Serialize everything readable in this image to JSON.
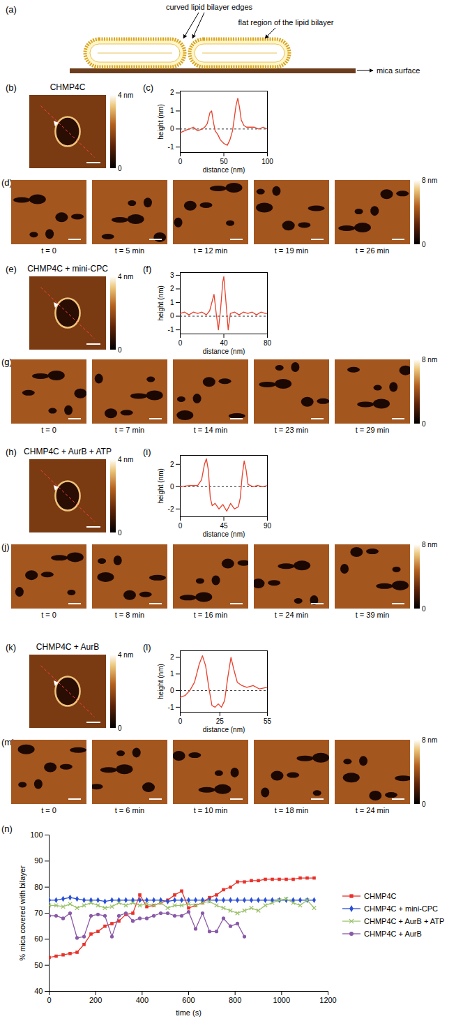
{
  "schematic": {
    "panel": "(a)",
    "edges_label": "curved lipid bilayer edges",
    "flat_label": "flat region of the lipid bilayer",
    "surface_label": "mica surface"
  },
  "images": [
    {
      "panel": "(b)",
      "title": "CHMP4C",
      "colorbar": {
        "range": [
          0,
          4
        ],
        "ticks": [
          0,
          {
            "value": 4,
            "label": "4 nm"
          }
        ]
      }
    },
    {
      "panel": "(d)",
      "frames": [
        "t = 0",
        "t = 5 min",
        "t = 12 min",
        "t = 19 min",
        "t = 26 min"
      ],
      "colorbar": {
        "range": [
          0,
          8
        ],
        "ticks": [
          0,
          {
            "value": 8,
            "label": "8 nm"
          }
        ]
      }
    },
    {
      "panel": "(e)",
      "title": "CHMP4C + mini-CPC",
      "colorbar": {
        "range": [
          0,
          4
        ],
        "ticks": [
          0,
          {
            "value": 4,
            "label": "4 nm"
          }
        ]
      }
    },
    {
      "panel": "(g)",
      "frames": [
        "t = 0",
        "t = 7 min",
        "t = 14 min",
        "t = 23 min",
        "t = 29 min"
      ],
      "colorbar": {
        "range": [
          0,
          8
        ],
        "ticks": [
          0,
          {
            "value": 8,
            "label": "8 nm"
          }
        ]
      }
    },
    {
      "panel": "(h)",
      "title": "CHMP4C + AurB + ATP",
      "colorbar": {
        "range": [
          0,
          4
        ],
        "ticks": [
          0,
          {
            "value": 4,
            "label": "4 nm"
          }
        ]
      }
    },
    {
      "panel": "(j)",
      "frames": [
        "t = 0",
        "t = 8 min",
        "t = 16 min",
        "t = 24 min",
        "t = 39 min"
      ],
      "colorbar": {
        "range": [
          0,
          8
        ],
        "ticks": [
          0,
          {
            "value": 8,
            "label": "8 nm"
          }
        ]
      }
    },
    {
      "panel": "(k)",
      "title": "CHMP4C + AurB",
      "colorbar": {
        "range": [
          0,
          4
        ],
        "ticks": [
          0,
          {
            "value": 4,
            "label": "4 nm"
          }
        ]
      }
    },
    {
      "panel": "(m)",
      "frames": [
        "t = 0",
        "t = 6 min",
        "t = 10 min",
        "t = 18 min",
        "t = 24 min"
      ],
      "colorbar": {
        "range": [
          0,
          8
        ],
        "ticks": [
          0,
          {
            "value": 8,
            "label": "8 nm"
          }
        ]
      }
    }
  ],
  "chart_data": [
    {
      "panel": "(c)",
      "type": "line",
      "color": "#e8412c",
      "ref_line": 0,
      "x": [
        0,
        5,
        10,
        15,
        20,
        25,
        28,
        31,
        34,
        36,
        38,
        40,
        43,
        46,
        50,
        54,
        57,
        60,
        62,
        64,
        66,
        68,
        70,
        73,
        76,
        80,
        85,
        90,
        95,
        100
      ],
      "values": [
        -0.2,
        -0.1,
        0,
        0.1,
        -0.1,
        0,
        0.1,
        0.3,
        0.9,
        1.0,
        0.4,
        -0.1,
        -0.3,
        -0.6,
        -0.8,
        -0.9,
        -0.6,
        -0.1,
        0.6,
        1.3,
        1.7,
        1.2,
        0.5,
        0.2,
        0.1,
        0.1,
        0.1,
        0,
        0.1,
        0
      ],
      "xlim": [
        0,
        100
      ],
      "xticks": [
        0,
        50,
        100
      ],
      "ylim": [
        -1.3,
        2.1
      ],
      "yticks": [
        -1,
        0,
        1,
        2
      ],
      "xlabel": "distance (nm)",
      "ylabel": "height (nm)"
    },
    {
      "panel": "(f)",
      "type": "line",
      "color": "#e8412c",
      "ref_line": 0,
      "x": [
        0,
        4,
        8,
        12,
        16,
        20,
        24,
        27,
        29,
        31,
        33,
        35,
        37,
        39,
        40,
        42,
        44,
        46,
        50,
        54,
        58,
        62,
        66,
        70,
        74,
        78,
        80
      ],
      "values": [
        0.2,
        0.3,
        0.1,
        0.3,
        0.2,
        0.3,
        0.1,
        0.4,
        1.0,
        1.6,
        0.2,
        -1.0,
        0.5,
        2.5,
        2.9,
        1.0,
        -1.0,
        0.2,
        0.3,
        0.1,
        0.3,
        0.2,
        0.3,
        0.1,
        0.3,
        0.2,
        0.2
      ],
      "xlim": [
        0,
        80
      ],
      "xticks": [
        0,
        40,
        80
      ],
      "ylim": [
        -1.3,
        3.2
      ],
      "yticks": [
        -1,
        0,
        1,
        2,
        3
      ],
      "xlabel": "distance (nm)",
      "ylabel": "height (nm)"
    },
    {
      "panel": "(i)",
      "type": "line",
      "color": "#e8412c",
      "ref_line": 0,
      "x": [
        0,
        10,
        18,
        22,
        25,
        27,
        29,
        31,
        33,
        36,
        40,
        44,
        48,
        52,
        56,
        60,
        62,
        64,
        66,
        68,
        70,
        75,
        80,
        85,
        90
      ],
      "values": [
        0,
        0.1,
        0.1,
        0.6,
        2.0,
        2.5,
        1.5,
        -1.0,
        -1.7,
        -1.5,
        -2.0,
        -1.6,
        -2.2,
        -1.5,
        -2.0,
        -1.8,
        -1.0,
        1.0,
        2.3,
        1.5,
        0.2,
        0,
        0.1,
        0,
        0.1
      ],
      "xlim": [
        0,
        90
      ],
      "xticks": [
        0,
        45,
        90
      ],
      "ylim": [
        -2.7,
        2.8
      ],
      "yticks": [
        -2,
        0,
        2
      ],
      "xlabel": "distance (nm)",
      "ylabel": "height (nm)"
    },
    {
      "panel": "(l)",
      "type": "line",
      "color": "#e8412c",
      "ref_line": 0,
      "x": [
        0,
        3,
        6,
        9,
        12,
        14,
        16,
        18,
        20,
        22,
        24,
        26,
        28,
        30,
        32,
        34,
        36,
        39,
        42,
        46,
        50,
        55
      ],
      "values": [
        -0.4,
        -0.3,
        0,
        0.5,
        1.6,
        2.1,
        1.5,
        0.2,
        -0.9,
        -1.0,
        -0.8,
        -1.0,
        -0.6,
        0.8,
        2.0,
        1.2,
        0.5,
        0.3,
        0.2,
        0.3,
        0.1,
        0.2
      ],
      "xlim": [
        0,
        55
      ],
      "xticks": [
        0,
        25,
        55
      ],
      "ylim": [
        -1.3,
        2.4
      ],
      "yticks": [
        -1,
        0,
        1,
        2
      ],
      "xlabel": "distance (nm)",
      "ylabel": "height (nm)"
    },
    {
      "panel": "(n)",
      "type": "line",
      "legend": "right",
      "xlabel": "time (s)",
      "ylabel": "% mica covered with bilayer",
      "xlim": [
        0,
        1200
      ],
      "xticks": [
        0,
        200,
        400,
        600,
        800,
        1000,
        1200
      ],
      "ylim": [
        40,
        100
      ],
      "yticks": [
        40,
        50,
        60,
        70,
        80,
        90,
        100
      ],
      "series": [
        {
          "name": "CHMP4C",
          "color": "#e8312a",
          "marker": "square",
          "x": [
            0,
            30,
            60,
            90,
            120,
            150,
            180,
            210,
            240,
            270,
            300,
            330,
            360,
            390,
            420,
            450,
            480,
            510,
            540,
            570,
            600,
            630,
            660,
            690,
            720,
            750,
            780,
            810,
            840,
            870,
            900,
            930,
            960,
            990,
            1020,
            1050,
            1080,
            1110,
            1140
          ],
          "values": [
            53,
            53.5,
            54,
            54.5,
            55,
            58,
            62,
            63,
            65,
            66,
            67,
            69.5,
            70,
            77,
            72.5,
            73,
            74,
            75,
            77,
            78.5,
            72,
            73,
            74,
            76,
            77,
            79,
            80,
            82,
            82,
            82.5,
            82.5,
            83,
            83,
            83,
            83,
            83,
            83.5,
            83.5,
            83.5
          ]
        },
        {
          "name": "CHMP4C + mini-CPC",
          "color": "#2a4fd6",
          "marker": "diamond",
          "x": [
            0,
            30,
            60,
            90,
            120,
            150,
            180,
            210,
            240,
            270,
            300,
            330,
            360,
            390,
            420,
            450,
            480,
            510,
            540,
            570,
            600,
            630,
            660,
            690,
            720,
            750,
            780,
            810,
            840,
            870,
            900,
            930,
            960,
            990,
            1020,
            1050,
            1080,
            1110,
            1140
          ],
          "values": [
            75,
            75,
            75.5,
            76,
            75.5,
            75,
            75,
            75,
            74.5,
            75,
            75,
            75,
            75,
            75,
            75,
            75,
            75,
            74.5,
            75,
            75,
            75,
            75,
            75,
            75,
            75,
            75,
            75,
            75,
            75,
            75,
            75,
            75,
            75,
            75,
            75,
            75,
            75,
            75,
            75
          ]
        },
        {
          "name": "CHMP4C + AurB + ATP",
          "color": "#9bc26b",
          "marker": "times",
          "x": [
            0,
            30,
            60,
            90,
            120,
            150,
            180,
            210,
            240,
            270,
            300,
            330,
            360,
            390,
            420,
            450,
            480,
            510,
            540,
            570,
            600,
            630,
            660,
            690,
            720,
            750,
            780,
            810,
            840,
            870,
            900,
            930,
            960,
            990,
            1020,
            1050,
            1080,
            1110,
            1140
          ],
          "values": [
            73,
            73,
            72.5,
            73.5,
            72,
            73,
            74,
            73,
            72,
            72.5,
            74,
            73,
            74,
            73,
            73.5,
            73,
            74,
            72,
            73,
            73,
            73.5,
            73,
            74,
            74.5,
            73,
            72,
            71,
            70,
            71,
            72,
            71,
            73,
            74,
            75,
            75.5,
            74,
            73,
            75,
            72
          ]
        },
        {
          "name": "CHMP4C + AurB",
          "color": "#8a5aa8",
          "marker": "circle",
          "x": [
            0,
            30,
            60,
            90,
            120,
            150,
            180,
            210,
            240,
            270,
            300,
            330,
            360,
            390,
            420,
            450,
            480,
            510,
            540,
            570,
            600,
            630,
            660,
            690,
            720,
            750,
            780,
            810,
            840
          ],
          "values": [
            69,
            69,
            68,
            70,
            60.5,
            61,
            69,
            69.5,
            69,
            61,
            69,
            70,
            67,
            68,
            68,
            69,
            70,
            70,
            69,
            69,
            70.5,
            64,
            70,
            63,
            63,
            68,
            65,
            66,
            61
          ]
        }
      ]
    }
  ]
}
